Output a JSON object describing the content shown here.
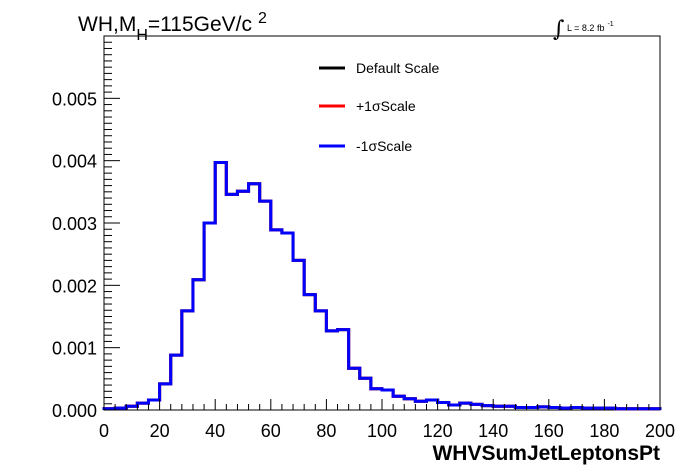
{
  "header": {
    "title_main": "WH,M",
    "title_sub": "H",
    "title_rest": "=115GeV/c",
    "title_sup": "2",
    "lumi_text": "L = 8.2 fb",
    "lumi_sup": "-1"
  },
  "chart_data": {
    "type": "line",
    "xlabel": "WHVSumJetLeptonsPt",
    "ylabel": "",
    "xlim": [
      0,
      200
    ],
    "ylim": [
      0,
      0.006
    ],
    "x_ticks": [
      "0",
      "20",
      "40",
      "60",
      "80",
      "100",
      "120",
      "140",
      "160",
      "180",
      "200"
    ],
    "y_ticks": [
      "0.000",
      "0.001",
      "0.002",
      "0.003",
      "0.004",
      "0.005"
    ],
    "bin_width": 4,
    "bin_low_edges": [
      0,
      4,
      8,
      12,
      16,
      20,
      24,
      28,
      32,
      36,
      40,
      44,
      48,
      52,
      56,
      60,
      64,
      68,
      72,
      76,
      80,
      84,
      88,
      92,
      96,
      100,
      104,
      108,
      112,
      116,
      120,
      124,
      128,
      132,
      136,
      140,
      144,
      148,
      152,
      156,
      160,
      164,
      168,
      172,
      176,
      180,
      184,
      188,
      192,
      196
    ],
    "series": [
      {
        "name": "Default Scale",
        "color": "#000000",
        "values": [
          2e-05,
          3e-05,
          6e-05,
          0.00011,
          0.00016,
          0.00042,
          0.00088,
          0.00159,
          0.00209,
          0.003,
          0.00397,
          0.00346,
          0.00351,
          0.00363,
          0.00335,
          0.00289,
          0.00284,
          0.0024,
          0.00185,
          0.00159,
          0.00127,
          0.00129,
          0.00067,
          0.00051,
          0.00034,
          0.00032,
          0.00022,
          0.00018,
          0.00014,
          0.00016,
          0.00012,
          8e-05,
          0.00011,
          9e-05,
          7e-05,
          6e-05,
          6e-05,
          4e-05,
          4e-05,
          5e-05,
          4e-05,
          3e-05,
          4e-05,
          3e-05,
          3e-05,
          3e-05,
          2e-05,
          2e-05,
          2e-05,
          2e-05
        ]
      },
      {
        "name": "+1σScale",
        "color": "#ff0000",
        "values": [
          2e-05,
          3e-05,
          6e-05,
          0.00011,
          0.00016,
          0.00042,
          0.00088,
          0.00159,
          0.00209,
          0.003,
          0.00397,
          0.00346,
          0.00351,
          0.00363,
          0.00335,
          0.00289,
          0.00284,
          0.0024,
          0.00185,
          0.00159,
          0.00127,
          0.00129,
          0.00067,
          0.00051,
          0.00034,
          0.00032,
          0.00022,
          0.00018,
          0.00014,
          0.00016,
          0.00012,
          8e-05,
          0.00011,
          9e-05,
          7e-05,
          6e-05,
          6e-05,
          4e-05,
          4e-05,
          5e-05,
          4e-05,
          3e-05,
          4e-05,
          3e-05,
          3e-05,
          3e-05,
          2e-05,
          2e-05,
          2e-05,
          2e-05
        ]
      },
      {
        "name": "-1σScale",
        "color": "#0000ff",
        "values": [
          2e-05,
          3e-05,
          6e-05,
          0.00011,
          0.00016,
          0.00042,
          0.00088,
          0.00159,
          0.00209,
          0.003,
          0.00397,
          0.00346,
          0.00351,
          0.00363,
          0.00335,
          0.00289,
          0.00284,
          0.0024,
          0.00185,
          0.00159,
          0.00127,
          0.00129,
          0.00067,
          0.00051,
          0.00034,
          0.00032,
          0.00022,
          0.00018,
          0.00014,
          0.00016,
          0.00012,
          8e-05,
          0.00011,
          9e-05,
          7e-05,
          6e-05,
          6e-05,
          4e-05,
          4e-05,
          5e-05,
          4e-05,
          3e-05,
          4e-05,
          3e-05,
          3e-05,
          3e-05,
          2e-05,
          2e-05,
          2e-05,
          2e-05
        ]
      }
    ],
    "legend_position": "top-center",
    "grid": false
  }
}
